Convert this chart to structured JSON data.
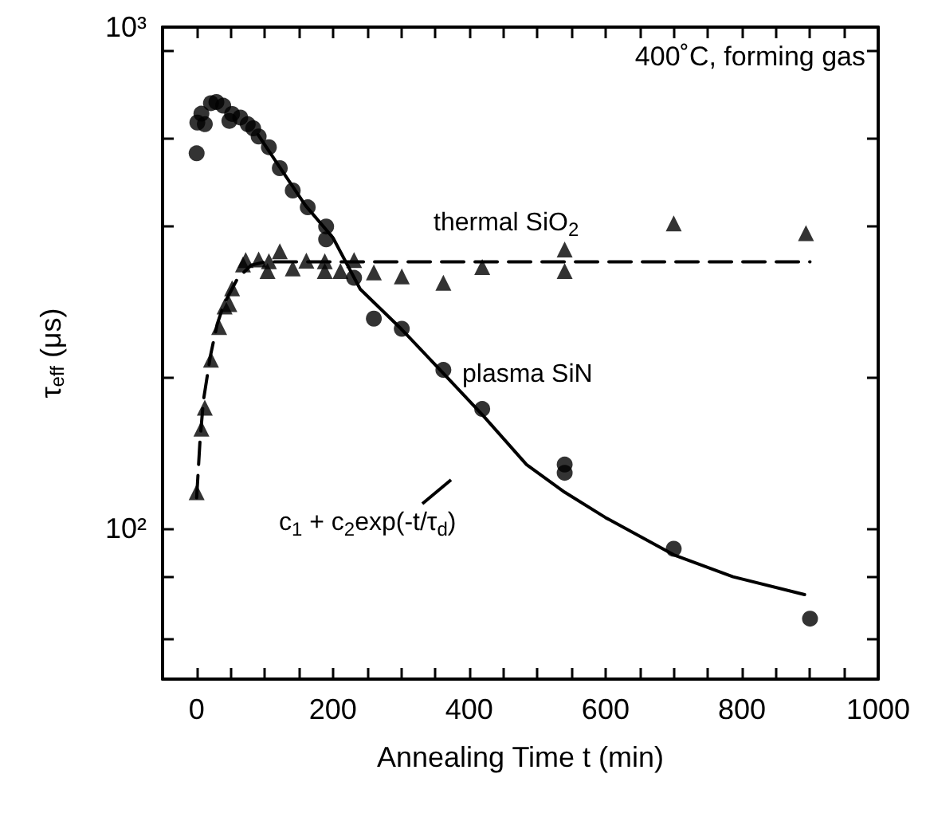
{
  "chart_data": {
    "type": "scatter",
    "xlabel": "Annealing Time t (min)",
    "ylabel": "τ$_{eff}$ (μs)",
    "log": "y",
    "xlim": [
      -50,
      1000
    ],
    "ylim": [
      50,
      1000
    ],
    "xticks": [
      0,
      {
        "value": 50,
        "label": null
      },
      200,
      {
        "value": 150,
        "label": null
      },
      {
        "value": 100,
        "label": null
      },
      {
        "value": 250,
        "label": null
      },
      {
        "value": 300,
        "label": null
      },
      {
        "value": 350,
        "label": null
      },
      400,
      {
        "value": 450,
        "label": null
      },
      {
        "value": 500,
        "label": null
      },
      {
        "value": 550,
        "label": null
      },
      600,
      {
        "value": 650,
        "label": null
      },
      {
        "value": 700,
        "label": null
      },
      {
        "value": 750,
        "label": null
      },
      800,
      {
        "value": 850,
        "label": null
      },
      {
        "value": 900,
        "label": null
      },
      {
        "value": 950,
        "label": null
      },
      1000
    ],
    "yticks": [
      {
        "value": 60,
        "label": null
      },
      {
        "value": 80,
        "label": null
      },
      {
        "value": 100,
        "label": "10²"
      },
      {
        "value": 200,
        "label": null
      },
      {
        "value": 400,
        "label": null
      },
      {
        "value": 600,
        "label": null
      },
      {
        "value": 900,
        "label": null
      },
      {
        "value": 1000,
        "label": "10³"
      }
    ],
    "series": [
      {
        "marker": "circle",
        "color": "#000000",
        "x": [
          0,
          1,
          7,
          12,
          21,
          29,
          39,
          48,
          52,
          64,
          75,
          83,
          91,
          106,
          122,
          141,
          163,
          190,
          190,
          231,
          260,
          301,
          362,
          419,
          540,
          540,
          700,
          900
        ],
        "values": [
          560,
          645,
          672,
          640,
          705,
          709,
          697,
          650,
          671,
          660,
          640,
          628,
          605,
          576,
          523,
          472,
          437,
          400,
          377,
          316,
          262,
          250,
          207,
          173,
          134,
          129,
          91,
          66
        ]
      },
      {
        "marker": "triangle",
        "color": "#000000",
        "x": [
          0,
          7,
          12,
          21,
          33,
          41,
          48,
          52,
          68,
          72,
          91,
          104,
          106,
          122,
          141,
          161,
          188,
          188,
          211,
          231,
          260,
          301,
          362,
          419,
          540,
          540,
          700,
          894
        ],
        "values": [
          118,
          158,
          174,
          217,
          252,
          277,
          280,
          301,
          336,
          343,
          344,
          326,
          341,
          357,
          330,
          342,
          341,
          326,
          326,
          343,
          324,
          318,
          309,
          332,
          360,
          326,
          406,
          388
        ]
      },
      {
        "type": "line",
        "marker": "none",
        "line_style": "solid",
        "color": "#000000",
        "x": [
          90,
          120,
          160,
          200,
          240,
          300,
          360,
          420,
          484,
          540,
          600,
          700,
          787,
          892
        ],
        "values": [
          610,
          530,
          440,
          380,
          300,
          250,
          205,
          168,
          134,
          118,
          105,
          88.5,
          80,
          73.7
        ]
      },
      {
        "type": "line",
        "marker": "none",
        "line_style": "dashed",
        "color": "#000000",
        "x": [
          0,
          5,
          10,
          20,
          30,
          40,
          60,
          80,
          100,
          900
        ],
        "values": [
          115,
          150,
          180,
          220,
          255,
          280,
          315,
          335,
          340,
          340
        ]
      }
    ],
    "annotations": [
      "400˚C, forming gas",
      "thermal SiO$_{2}$",
      "plasma SiN",
      "c$_{1}$ + c$_{2}$exp(-t/τ$_{d}$)"
    ]
  }
}
